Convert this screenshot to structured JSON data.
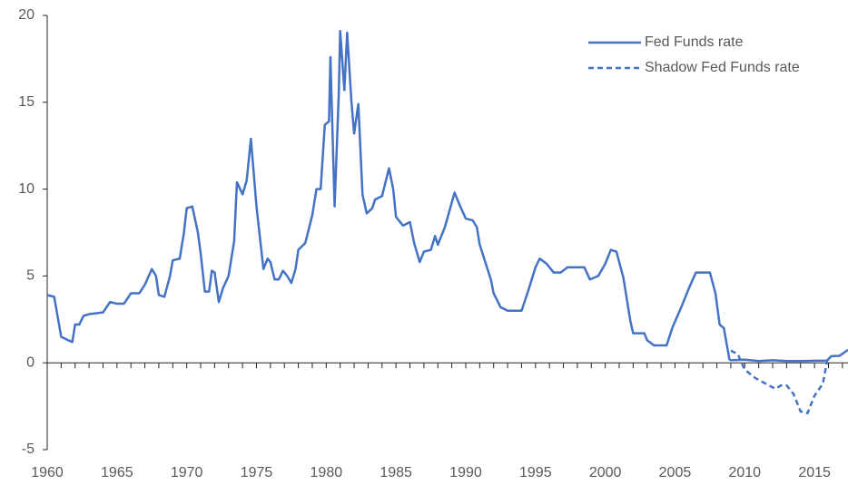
{
  "chart_data": {
    "type": "line",
    "xlim": [
      1960,
      2017.4
    ],
    "ylim": [
      -5,
      20
    ],
    "xticks": [
      1960,
      1965,
      1970,
      1975,
      1980,
      1985,
      1990,
      1995,
      2000,
      2005,
      2010,
      2015
    ],
    "xminorticks": [
      1960,
      1961,
      1962,
      1963,
      1964,
      1965,
      1966,
      1967,
      1968,
      1969,
      1970,
      1971,
      1972,
      1973,
      1974,
      1975,
      1976,
      1977,
      1978,
      1979,
      1980,
      1981,
      1982,
      1983,
      1984,
      1985,
      1986,
      1987,
      1988,
      1989,
      1990,
      1991,
      1992,
      1993,
      1994,
      1995,
      1996,
      1997,
      1998,
      1999,
      2000,
      2001,
      2002,
      2003,
      2004,
      2005,
      2006,
      2007,
      2008,
      2009,
      2010,
      2011,
      2012,
      2013,
      2014,
      2015,
      2016,
      2017
    ],
    "yticks": [
      -5,
      0,
      5,
      10,
      15,
      20
    ],
    "legend": "upper right",
    "series": [
      {
        "name": "Fed Funds rate",
        "color": "#4472c4",
        "dash": false,
        "x": [
          1960,
          1960.5,
          1961,
          1961.5,
          1961.8,
          1962,
          1962.3,
          1962.6,
          1963,
          1964,
          1964.5,
          1965,
          1965.5,
          1966,
          1966.6,
          1967,
          1967.5,
          1967.8,
          1968,
          1968.4,
          1968.8,
          1969,
          1969.5,
          1969.8,
          1970,
          1970.4,
          1970.8,
          1971,
          1971.3,
          1971.6,
          1971.8,
          1972,
          1972.3,
          1972.6,
          1973,
          1973.4,
          1973.6,
          1974,
          1974.3,
          1974.6,
          1975,
          1975.5,
          1975.8,
          1976,
          1976.3,
          1976.6,
          1976.9,
          1977.2,
          1977.5,
          1977.8,
          1978,
          1978.5,
          1979,
          1979.3,
          1979.6,
          1979.9,
          1980.2,
          1980.3,
          1980.6,
          1980.9,
          1981,
          1981.3,
          1981.5,
          1981.8,
          1982,
          1982.3,
          1982.6,
          1982.9,
          1983.3,
          1983.5,
          1984,
          1984.5,
          1984.8,
          1985,
          1985.5,
          1986,
          1986.3,
          1986.7,
          1987,
          1987.5,
          1987.8,
          1988,
          1988.5,
          1989.2,
          1989.5,
          1990,
          1990.5,
          1990.8,
          1991,
          1991.4,
          1991.8,
          1992,
          1992.5,
          1993,
          1994,
          1994.5,
          1995,
          1995.3,
          1995.8,
          1996.3,
          1996.8,
          1997.3,
          1998,
          1998.5,
          1998.9,
          1999.5,
          2000,
          2000.4,
          2000.8,
          2001.3,
          2001.8,
          2002,
          2002.8,
          2003,
          2003.5,
          2004.4,
          2004.8,
          2005.5,
          2006,
          2006.5,
          2007.5,
          2007.9,
          2008.2,
          2008.5,
          2008.9,
          2009,
          2010,
          2011,
          2012,
          2013,
          2014,
          2015,
          2015.9,
          2016.2,
          2016.8,
          2017.4
        ],
        "values": [
          3.9,
          3.8,
          1.5,
          1.3,
          1.2,
          2.2,
          2.2,
          2.7,
          2.8,
          2.9,
          3.5,
          3.4,
          3.4,
          4.0,
          4.0,
          4.5,
          5.4,
          5.0,
          3.9,
          3.8,
          5.0,
          5.9,
          6.0,
          7.5,
          8.9,
          9.0,
          7.5,
          6.3,
          4.1,
          4.1,
          5.3,
          5.2,
          3.5,
          4.3,
          5.0,
          7.0,
          10.4,
          9.7,
          10.5,
          12.9,
          9.0,
          5.4,
          6.0,
          5.8,
          4.8,
          4.8,
          5.3,
          5.0,
          4.6,
          5.4,
          6.5,
          6.9,
          8.5,
          10.0,
          10.0,
          13.7,
          13.9,
          17.6,
          9.0,
          15.5,
          19.1,
          15.7,
          19.0,
          15.1,
          13.2,
          14.9,
          9.7,
          8.6,
          8.9,
          9.4,
          9.6,
          11.2,
          10.0,
          8.4,
          7.9,
          8.1,
          6.9,
          5.8,
          6.4,
          6.5,
          7.3,
          6.8,
          7.8,
          9.8,
          9.2,
          8.3,
          8.2,
          7.8,
          6.8,
          5.8,
          4.8,
          4.0,
          3.2,
          3.0,
          3.0,
          4.2,
          5.5,
          6.0,
          5.7,
          5.2,
          5.2,
          5.5,
          5.5,
          5.5,
          4.8,
          5.0,
          5.7,
          6.5,
          6.4,
          4.9,
          2.4,
          1.7,
          1.7,
          1.3,
          1.0,
          1.0,
          2.0,
          3.3,
          4.3,
          5.2,
          5.2,
          4.0,
          2.2,
          2.0,
          0.2,
          0.15,
          0.18,
          0.1,
          0.15,
          0.1,
          0.1,
          0.12,
          0.13,
          0.38,
          0.4,
          0.75
        ]
      },
      {
        "name": "Shadow Fed Funds rate",
        "color": "#4472c4",
        "dash": true,
        "x": [
          2009,
          2009.5,
          2010,
          2010.8,
          2011.5,
          2012.2,
          2012.6,
          2013,
          2013.5,
          2014,
          2014.5,
          2015,
          2015.6,
          2015.9
        ],
        "values": [
          0.7,
          0.5,
          -0.4,
          -0.9,
          -1.2,
          -1.5,
          -1.3,
          -1.3,
          -1.8,
          -2.8,
          -2.9,
          -1.9,
          -1.2,
          0.1
        ]
      }
    ]
  }
}
